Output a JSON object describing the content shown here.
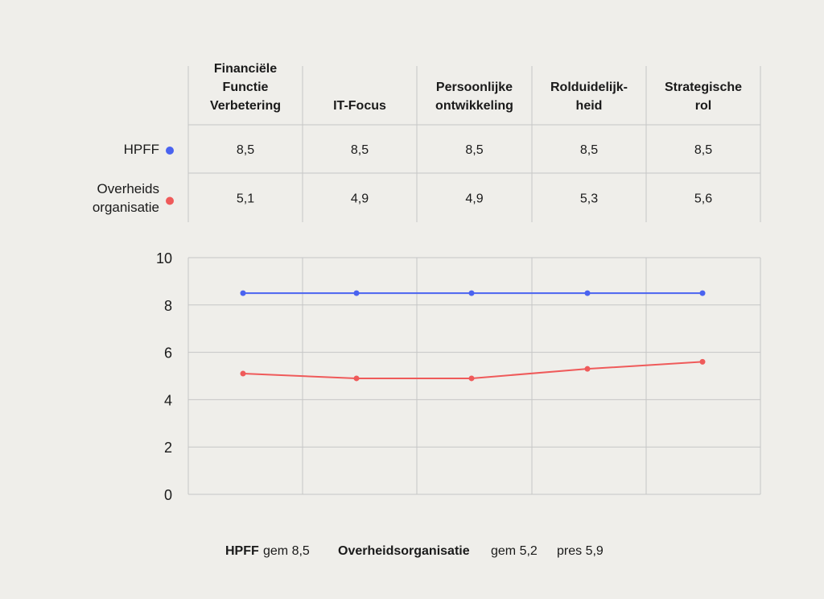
{
  "chart_data": {
    "type": "line",
    "categories": [
      [
        "Financiële",
        "Functie",
        "Verbetering"
      ],
      [
        "IT-Focus"
      ],
      [
        "Persoonlijke",
        "ontwikkeling"
      ],
      [
        "Rolduidelijk-",
        "heid"
      ],
      [
        "Strategische",
        "rol"
      ]
    ],
    "series": [
      {
        "name": [
          "HPFF"
        ],
        "color": "#4a63f0",
        "values": [
          8.5,
          8.5,
          8.5,
          8.5,
          8.5
        ],
        "labels": [
          "8,5",
          "8,5",
          "8,5",
          "8,5",
          "8,5"
        ]
      },
      {
        "name": [
          "Overheids",
          "organisatie"
        ],
        "color": "#ef5a5a",
        "values": [
          5.1,
          4.9,
          4.9,
          5.3,
          5.6
        ],
        "labels": [
          "5,1",
          "4,9",
          "4,9",
          "5,3",
          "5,6"
        ]
      }
    ],
    "ylim": [
      0,
      10
    ],
    "yticks": [
      "0",
      "2",
      "4",
      "6",
      "8",
      "10"
    ],
    "grid": true
  },
  "footer": {
    "hpff_label": "HPFF",
    "hpff_avg": "gem 8,5",
    "org_label": "Overheidsorganisatie",
    "org_avg": "gem 5,2",
    "org_pres": "pres 5,9"
  }
}
